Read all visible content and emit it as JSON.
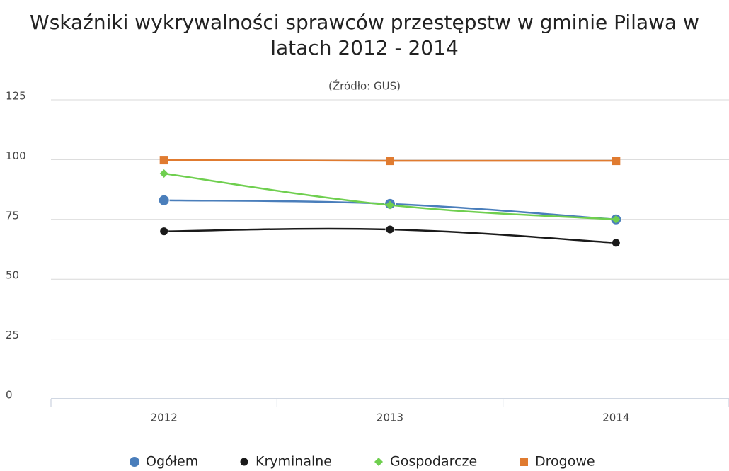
{
  "chart_data": {
    "type": "line",
    "title": "Wskaźniki wykrywalności sprawców przestępstw w gminie Pilawa w latach 2012 - 2014",
    "subtitle": "(Źródło: GUS)",
    "categories": [
      "2012",
      "2013",
      "2014"
    ],
    "series": [
      {
        "name": "Ogółem",
        "color": "#4a7ebb",
        "marker": "circle",
        "values": [
          83,
          81.5,
          75
        ]
      },
      {
        "name": "Kryminalne",
        "color": "#1a1a1a",
        "marker": "circle",
        "values": [
          70,
          70.8,
          65.2
        ]
      },
      {
        "name": "Gospodarcze",
        "color": "#6fcf4f",
        "marker": "diamond",
        "values": [
          94.2,
          81,
          75
        ]
      },
      {
        "name": "Drogowe",
        "color": "#e07b30",
        "marker": "square",
        "values": [
          99.8,
          99.5,
          99.5
        ]
      }
    ],
    "ylim": [
      0,
      125
    ],
    "yticks": [
      0,
      25,
      50,
      75,
      100,
      125
    ],
    "grid": true,
    "legend": "bottom"
  }
}
